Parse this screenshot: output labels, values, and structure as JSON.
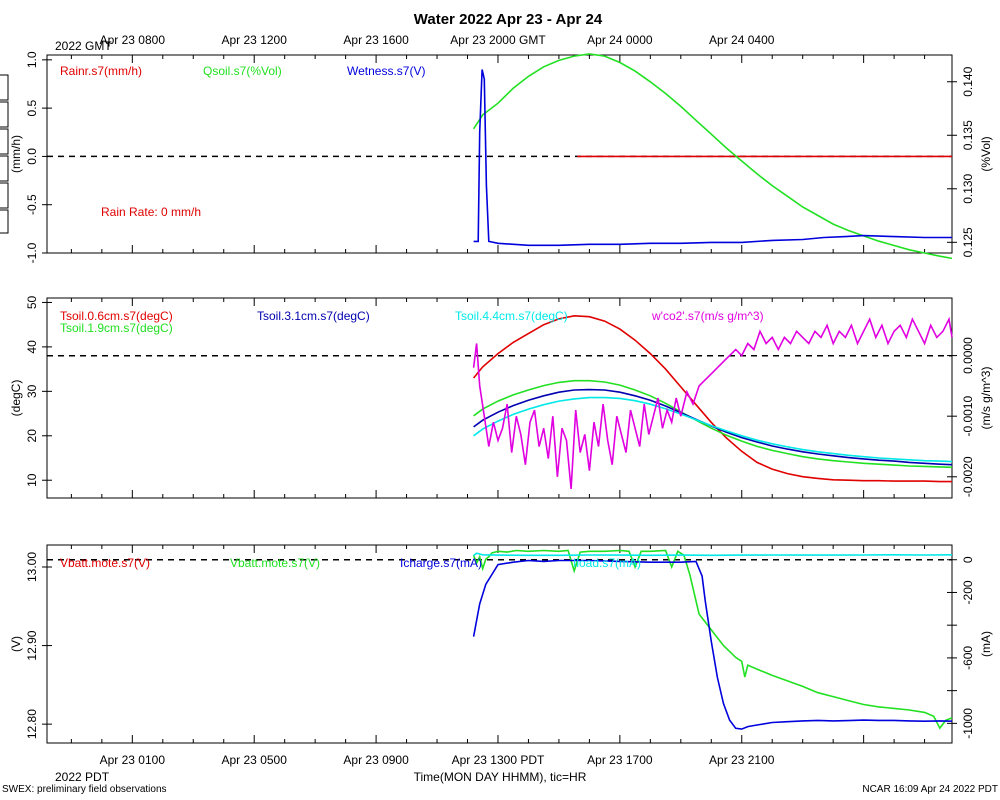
{
  "chart_data": [
    {
      "type": "line",
      "title": "Water 2022 Apr 23 - Apr 24",
      "ylabel_left": "(mm/h)",
      "ylabel_right": "(%Vol)",
      "ylim_left": [
        -1.0,
        1.05
      ],
      "ylim_right": [
        0.124,
        0.1425
      ],
      "yticks_left": [
        1.0,
        0.5,
        0.0,
        -0.5,
        -1.0
      ],
      "yticks_left_labels": [
        "1.0",
        "0.5",
        "0.0",
        "-0.5",
        "-1.0"
      ],
      "yticks_right": [
        0.14,
        0.135,
        0.13,
        0.125
      ],
      "yticks_right_labels": [
        "0.140",
        "0.135",
        "0.130",
        "0.125"
      ],
      "reference_line": 0.0,
      "annotation": "Rain Rate: 0 mm/h",
      "series": [
        {
          "name": "Rainr.s7(mm/h)",
          "axis": "left",
          "color": "#e00000",
          "x": [
            15.6,
            27.9
          ],
          "y": [
            0.0,
            0.0
          ]
        },
        {
          "name": "Qsoil.s7(%Vol)",
          "axis": "right",
          "color": "#22e022",
          "x": [
            12.2,
            12.5,
            13,
            13.5,
            14,
            14.5,
            15,
            15.5,
            16,
            16.5,
            17,
            17.5,
            18,
            18.5,
            19,
            19.5,
            20,
            20.5,
            21,
            21.5,
            22,
            22.5,
            23,
            23.5,
            24,
            24.5,
            25,
            25.5,
            26,
            26.5,
            27,
            27.5,
            27.9
          ],
          "y": [
            0.1356,
            0.1369,
            0.138,
            0.1394,
            0.1405,
            0.1414,
            0.142,
            0.1424,
            0.1426,
            0.1424,
            0.1418,
            0.141,
            0.14,
            0.1389,
            0.1377,
            0.1364,
            0.1351,
            0.1338,
            0.1326,
            0.1314,
            0.1303,
            0.1293,
            0.1283,
            0.1275,
            0.1267,
            0.1261,
            0.1256,
            0.1251,
            0.1247,
            0.1243,
            0.124,
            0.1237,
            0.1235
          ]
        },
        {
          "name": "Wetness.s7(V)",
          "axis": "left",
          "color": "#0000dd",
          "x": [
            12.2,
            12.35,
            12.4,
            12.48,
            12.55,
            12.62,
            12.7,
            13,
            14,
            15,
            16,
            17,
            18,
            19,
            20,
            21,
            22,
            23,
            23.7,
            24.4,
            25,
            26,
            27,
            27.9
          ],
          "y": [
            -0.88,
            -0.88,
            0.25,
            0.9,
            0.8,
            -0.3,
            -0.88,
            -0.9,
            -0.92,
            -0.92,
            -0.91,
            -0.91,
            -0.9,
            -0.9,
            -0.89,
            -0.89,
            -0.87,
            -0.86,
            -0.84,
            -0.83,
            -0.82,
            -0.83,
            -0.84,
            -0.84
          ]
        }
      ]
    },
    {
      "type": "line",
      "ylabel_left": "(degC)",
      "ylabel_right": "(m/s g/m^3)",
      "ylim_left": [
        6,
        51
      ],
      "ylim_right": [
        -0.00235,
        0.00095
      ],
      "yticks_left": [
        50,
        40,
        30,
        20,
        10
      ],
      "yticks_left_labels": [
        "50",
        "40",
        "30",
        "20",
        "10"
      ],
      "yticks_right": [
        0.0,
        -0.001,
        -0.002
      ],
      "yticks_right_labels": [
        "0.0000",
        "-0.0010",
        "-0.0020"
      ],
      "reference_line": 38,
      "series": [
        {
          "name": "Tsoil.0.6cm.s7(degC)",
          "axis": "left",
          "color": "#e00000",
          "x": [
            12.2,
            12.5,
            13,
            13.5,
            14,
            14.5,
            15,
            15.5,
            16,
            16.5,
            17,
            17.5,
            18,
            18.5,
            19,
            19.5,
            20,
            20.5,
            21,
            21.5,
            22,
            22.5,
            23,
            23.5,
            24,
            24.5,
            25,
            25.5,
            26,
            26.5,
            27,
            27.5,
            27.9
          ],
          "y": [
            33,
            35.5,
            38.5,
            41,
            43,
            45,
            46.3,
            47,
            46.8,
            45.8,
            44,
            41.5,
            38.5,
            35,
            31,
            27,
            23,
            19.5,
            16.5,
            14,
            12.5,
            11.5,
            10.8,
            10.4,
            10.1,
            10.0,
            9.9,
            9.9,
            9.8,
            9.8,
            9.8,
            9.7,
            9.7
          ]
        },
        {
          "name": "Tsoil.1.9cm.s7(degC)",
          "axis": "left",
          "color": "#22e022",
          "x": [
            12.2,
            12.5,
            13,
            13.5,
            14,
            14.5,
            15,
            15.5,
            16,
            16.5,
            17,
            17.5,
            18,
            18.5,
            19,
            19.5,
            20,
            20.5,
            21,
            21.5,
            22,
            22.5,
            23,
            23.5,
            24,
            24.5,
            25,
            25.5,
            26,
            26.5,
            27,
            27.5,
            27.9
          ],
          "y": [
            24.5,
            26,
            27.8,
            29.2,
            30.3,
            31.3,
            32,
            32.4,
            32.4,
            32.1,
            31.4,
            30.3,
            29,
            27.3,
            25.4,
            23.5,
            21.7,
            20.1,
            18.8,
            17.6,
            16.7,
            16,
            15.3,
            14.8,
            14.4,
            14.1,
            13.8,
            13.6,
            13.4,
            13.2,
            13.1,
            13.0,
            12.9
          ]
        },
        {
          "name": "Tsoil.3.1cm.s7(degC)",
          "axis": "left",
          "color": "#0000b0",
          "x": [
            12.2,
            12.5,
            13,
            13.5,
            14,
            14.5,
            15,
            15.5,
            16,
            16.5,
            17,
            17.5,
            18,
            18.5,
            19,
            19.5,
            20,
            20.5,
            21,
            21.5,
            22,
            22.5,
            23,
            23.5,
            24,
            24.5,
            25,
            25.5,
            26,
            26.5,
            27,
            27.5,
            27.9
          ],
          "y": [
            22,
            23.5,
            25.3,
            26.8,
            28,
            29,
            29.8,
            30.3,
            30.4,
            30.3,
            29.8,
            29,
            28,
            26.7,
            25.2,
            23.7,
            22.2,
            20.8,
            19.6,
            18.6,
            17.7,
            17,
            16.4,
            15.9,
            15.5,
            15.1,
            14.8,
            14.5,
            14.3,
            14.0,
            13.8,
            13.6,
            13.5
          ]
        },
        {
          "name": "Tsoil.4.4cm.s7(degC)",
          "axis": "left",
          "color": "#00e8e8",
          "x": [
            12.2,
            12.5,
            13,
            13.5,
            14,
            14.5,
            15,
            15.5,
            16,
            16.5,
            17,
            17.5,
            18,
            18.5,
            19,
            19.5,
            20,
            20.5,
            21,
            21.5,
            22,
            22.5,
            23,
            23.5,
            24,
            24.5,
            25,
            25.5,
            26,
            26.5,
            27,
            27.5,
            27.9
          ],
          "y": [
            20,
            21.5,
            23.3,
            24.8,
            26,
            27,
            27.8,
            28.3,
            28.6,
            28.6,
            28.4,
            27.9,
            27.1,
            26.1,
            24.9,
            23.6,
            22.3,
            21.1,
            20,
            19,
            18.2,
            17.5,
            16.9,
            16.4,
            16,
            15.6,
            15.3,
            15.0,
            14.8,
            14.6,
            14.4,
            14.3,
            14.2
          ]
        },
        {
          "name": "w'co2'.s7(m/s g/m^3)",
          "axis": "right",
          "color": "#e000e0",
          "x": [
            12.2,
            12.3,
            12.4,
            12.55,
            12.7,
            12.85,
            13.0,
            13.15,
            13.3,
            13.45,
            13.6,
            13.75,
            13.9,
            14.05,
            14.2,
            14.35,
            14.5,
            14.65,
            14.8,
            14.95,
            15.1,
            15.25,
            15.4,
            15.55,
            15.7,
            15.85,
            16.0,
            16.15,
            16.3,
            16.45,
            16.6,
            16.75,
            16.9,
            17.05,
            17.2,
            17.35,
            17.5,
            17.65,
            17.8,
            17.95,
            18.1,
            18.25,
            18.4,
            18.55,
            18.7,
            18.85,
            19.0,
            19.2,
            19.4,
            19.6,
            19.8,
            20.0,
            20.2,
            20.4,
            20.6,
            20.8,
            21.0,
            21.2,
            21.4,
            21.6,
            21.8,
            22.0,
            22.2,
            22.4,
            22.6,
            22.8,
            23.0,
            23.2,
            23.4,
            23.6,
            23.8,
            24.0,
            24.2,
            24.4,
            24.6,
            24.8,
            25.0,
            25.2,
            25.4,
            25.6,
            25.8,
            26.0,
            26.2,
            26.4,
            26.6,
            26.8,
            27.0,
            27.2,
            27.4,
            27.6,
            27.8,
            27.9
          ],
          "y": [
            -0.0002,
            0.0002,
            -0.0005,
            -0.001,
            -0.0015,
            -0.0011,
            -0.0014,
            -0.0012,
            -0.0008,
            -0.0016,
            -0.001,
            -0.0013,
            -0.0018,
            -0.0011,
            -0.0009,
            -0.0015,
            -0.0012,
            -0.0017,
            -0.001,
            -0.002,
            -0.0012,
            -0.0014,
            -0.0022,
            -0.0009,
            -0.0016,
            -0.0013,
            -0.0019,
            -0.0011,
            -0.0015,
            -0.0008,
            -0.0014,
            -0.0018,
            -0.001,
            -0.0013,
            -0.0016,
            -0.0009,
            -0.0012,
            -0.0015,
            -0.0008,
            -0.0013,
            -0.001,
            -0.0007,
            -0.0012,
            -0.0009,
            -0.0011,
            -0.0007,
            -0.001,
            -0.0006,
            -0.0008,
            -0.0005,
            -0.0004,
            -0.0003,
            -0.0002,
            -0.0001,
            0.0,
            0.0001,
            0.0,
            0.0002,
            0.0001,
            0.0004,
            0.0002,
            0.0003,
            0.0001,
            0.0003,
            0.0002,
            0.0004,
            0.0003,
            0.0002,
            0.0004,
            0.0003,
            0.0005,
            0.0002,
            0.0004,
            0.0003,
            0.0005,
            0.0002,
            0.0004,
            0.0006,
            0.0003,
            0.0005,
            0.0002,
            0.0004,
            0.0005,
            0.0003,
            0.0006,
            0.0004,
            0.0002,
            0.0005,
            0.0003,
            0.0004,
            0.0006,
            0.0003
          ]
        }
      ]
    },
    {
      "type": "line",
      "ylabel_left": "(V)",
      "ylabel_right": "(mA)",
      "ylim_left": [
        12.776,
        13.028
      ],
      "ylim_right": [
        -1120,
        90
      ],
      "yticks_left": [
        13.0,
        12.9,
        12.8
      ],
      "yticks_left_labels": [
        "13.00",
        "12.90",
        "12.80"
      ],
      "yticks_right": [
        0,
        -200,
        -400,
        -600,
        -800,
        -1000
      ],
      "yticks_right_labels": [
        "0",
        "-200",
        "",
        "-600",
        "",
        "-1000"
      ],
      "reference_line_right": 0,
      "xlabel": "Time(MON DAY HHMM), tic=HR",
      "x_ticks_bottom": [
        "Apr 23 0100",
        "Apr 23 0500",
        "Apr 23 0900",
        "Apr 23 1300 PDT",
        "Apr 23 1700",
        "Apr 23 2100"
      ],
      "x_tick_bottom_values": [
        1,
        5,
        9,
        13,
        17,
        21
      ],
      "x_bottom_date": "2022 PDT",
      "series": [
        {
          "name": "Vbatt.mote.s7(V)",
          "axis": "left",
          "color": "#e00000",
          "x": [],
          "y": []
        },
        {
          "name": "Vbatt.mote.s7(V)",
          "axis": "left",
          "color": "#22e022",
          "x": [
            12.2,
            12.3,
            12.4,
            12.5,
            12.6,
            12.7,
            12.8,
            13,
            13.3,
            13.6,
            14,
            14.5,
            15,
            15.3,
            15.5,
            15.7,
            16,
            16.5,
            17,
            17.3,
            17.5,
            17.7,
            18,
            18.5,
            18.7,
            18.9,
            19.1,
            19.3,
            19.6,
            20,
            20.4,
            20.8,
            21,
            21.1,
            21.2,
            21.5,
            22,
            22.5,
            23,
            23.5,
            24,
            24.5,
            25,
            25.5,
            26,
            26.5,
            27,
            27.3,
            27.5,
            27.7,
            27.9
          ],
          "y": [
            13.015,
            13.005,
            13.013,
            12.998,
            13.01,
            13.013,
            13.018,
            13.02,
            13.019,
            13.021,
            13.02,
            13.021,
            13.02,
            13.021,
            12.995,
            13.019,
            13.02,
            13.02,
            13.021,
            13.02,
            13.0,
            13.02,
            13.02,
            13.021,
            13.0,
            13.02,
            13.015,
            12.99,
            12.94,
            12.92,
            12.9,
            12.885,
            12.88,
            12.86,
            12.875,
            12.87,
            12.862,
            12.855,
            12.848,
            12.84,
            12.835,
            12.83,
            12.825,
            12.822,
            12.82,
            12.818,
            12.815,
            12.81,
            12.795,
            12.805,
            12.808
          ]
        },
        {
          "name": "Icharge.s7(mA)",
          "axis": "right",
          "color": "#0000dd",
          "x": [
            12.2,
            12.4,
            12.6,
            12.8,
            13,
            13.5,
            14,
            14.5,
            15,
            16,
            17,
            18,
            19,
            19.5,
            19.7,
            19.8,
            20,
            20.2,
            20.4,
            20.6,
            20.8,
            21,
            21.2,
            21.5,
            22,
            22.5,
            23,
            23.5,
            24,
            24.5,
            25,
            25.5,
            26,
            26.5,
            27,
            27.5,
            27.9
          ],
          "y": [
            -470,
            -270,
            -150,
            -90,
            -30,
            -15,
            -5,
            -10,
            -5,
            -5,
            -10,
            -15,
            -15,
            -10,
            -100,
            -250,
            -500,
            -720,
            -880,
            -980,
            -1030,
            -1035,
            -1020,
            -1010,
            -995,
            -990,
            -985,
            -982,
            -985,
            -983,
            -980,
            -982,
            -982,
            -985,
            -987,
            -985,
            -987
          ]
        },
        {
          "name": "Iload.s7(mA)",
          "axis": "right",
          "color": "#00e8e8",
          "x": [
            12.2,
            12.3,
            12.5,
            13,
            14,
            15,
            16,
            17,
            18,
            19,
            20,
            21,
            22,
            23,
            24,
            25,
            26,
            27,
            27.9
          ],
          "y": [
            25,
            40,
            30,
            28,
            27,
            27,
            29,
            28,
            27,
            28,
            27,
            28,
            29,
            28,
            28,
            29,
            30,
            29,
            30
          ]
        }
      ]
    }
  ],
  "header": {
    "title": "Water 2022 Apr 23 - Apr 24",
    "gmt_ticks": [
      "Apr 23 0800",
      "Apr 23 1200",
      "Apr 23 1600",
      "Apr 23 2000 GMT",
      "Apr 24 0000",
      "Apr 24 0400"
    ],
    "gmt_tick_values": [
      1,
      5,
      9,
      13,
      17,
      21
    ],
    "gmt_date": "2022 GMT"
  },
  "footer": {
    "left": "SWEX: preliminary field observations",
    "right": "NCAR 16:09 Apr 24 2022 PDT"
  },
  "colors": {
    "red": "#e00000",
    "green": "#22e022",
    "blue": "#0000dd",
    "cyan": "#00e8e8",
    "magenta": "#e000e0"
  }
}
